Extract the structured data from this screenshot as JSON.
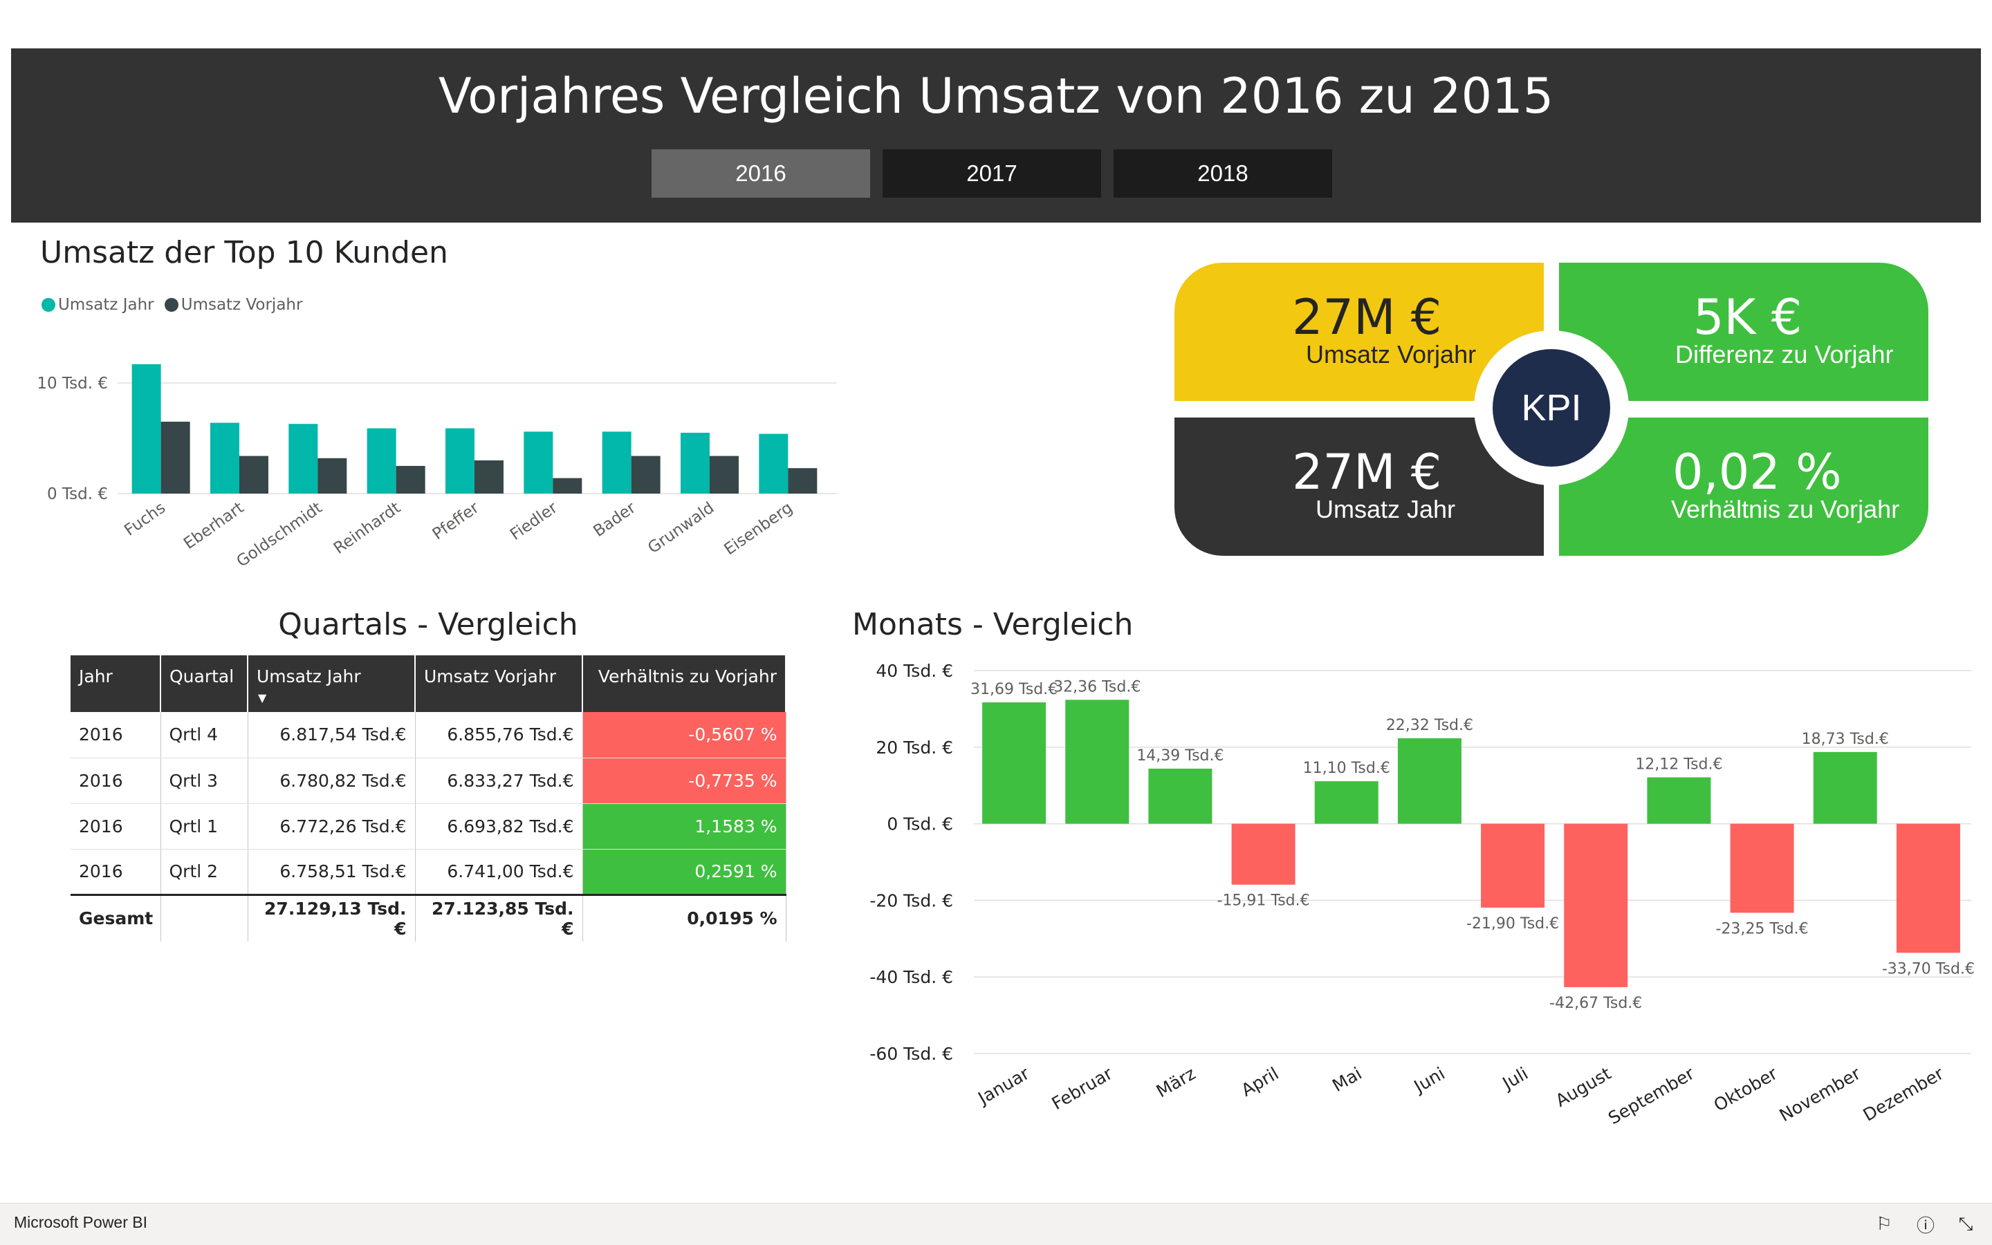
{
  "header": {
    "title": "Vorjahres Vergleich Umsatz von 2016 zu 2015",
    "years": [
      "2016",
      "2017",
      "2018"
    ],
    "active_year": "2016"
  },
  "top10": {
    "title": "Umsatz der Top 10 Kunden",
    "legend": [
      "Umsatz Jahr",
      "Umsatz Vorjahr"
    ]
  },
  "kpi": {
    "center_label": "KPI",
    "cards": [
      {
        "value": "27M €",
        "label": "Umsatz Vorjahr",
        "color": "#f2c811"
      },
      {
        "value": "5K €",
        "label": "Differenz zu Vorjahr",
        "color": "#3fbf3f"
      },
      {
        "value": "27M €",
        "label": "Umsatz Jahr",
        "color": "#333333"
      },
      {
        "value": "0,02 %",
        "label": "Verhältnis zu Vorjahr",
        "color": "#3fbf3f"
      }
    ]
  },
  "quartals": {
    "title": "Quartals - Vergleich",
    "columns": [
      "Jahr",
      "Quartal",
      "Umsatz Jahr",
      "Umsatz Vorjahr",
      "Verhältnis zu Vorjahr"
    ],
    "rows": [
      [
        "2016",
        "Qrtl 4",
        "6.817,54 Tsd.€",
        "6.855,76 Tsd.€",
        "-0,5607 %"
      ],
      [
        "2016",
        "Qrtl 3",
        "6.780,82 Tsd.€",
        "6.833,27 Tsd.€",
        "-0,7735 %"
      ],
      [
        "2016",
        "Qrtl 1",
        "6.772,26 Tsd.€",
        "6.693,82 Tsd.€",
        "1,1583 %"
      ],
      [
        "2016",
        "Qrtl 2",
        "6.758,51 Tsd.€",
        "6.741,00 Tsd.€",
        "0,2591 %"
      ]
    ],
    "total": [
      "Gesamt",
      "",
      "27.129,13 Tsd.€",
      "27.123,85 Tsd.€",
      "0,0195 %"
    ]
  },
  "monats": {
    "title": "Monats - Vergleich"
  },
  "footer": {
    "brand": "Microsoft Power BI"
  },
  "chart_data": [
    {
      "type": "bar",
      "title": "Umsatz der Top 10 Kunden",
      "categories": [
        "Fuchs",
        "Eberhart",
        "Goldschmidt",
        "Reinhardt",
        "Pfeffer",
        "Fiedler",
        "Bader",
        "Grunwald",
        "Eisenberg"
      ],
      "series": [
        {
          "name": "Umsatz Jahr",
          "color": "#01b8aa",
          "values": [
            11.7,
            6.4,
            6.3,
            5.9,
            5.9,
            5.6,
            5.6,
            5.5,
            5.4
          ]
        },
        {
          "name": "Umsatz Vorjahr",
          "color": "#374649",
          "values": [
            6.5,
            3.4,
            3.2,
            2.5,
            3.0,
            1.4,
            3.4,
            3.4,
            2.3
          ]
        }
      ],
      "yticks": [
        0,
        10
      ],
      "ytick_labels": [
        "0 Tsd. €",
        "10 Tsd. €"
      ],
      "ylim": [
        0,
        14
      ],
      "legend_position": "top-left"
    },
    {
      "type": "bar",
      "title": "Monats - Vergleich",
      "categories": [
        "Januar",
        "Februar",
        "März",
        "April",
        "Mai",
        "Juni",
        "Juli",
        "August",
        "September",
        "Oktober",
        "November",
        "Dezember"
      ],
      "values": [
        31.69,
        32.36,
        14.39,
        -15.91,
        11.1,
        22.32,
        -21.9,
        -42.67,
        12.12,
        -23.25,
        18.73,
        -33.7
      ],
      "data_labels": [
        "31,69 Tsd.€",
        "32,36 Tsd.€",
        "14,39 Tsd.€",
        "-15,91 Tsd.€",
        "11,10 Tsd.€",
        "22,32 Tsd.€",
        "-21,90 Tsd.€",
        "-42,67 Tsd.€",
        "12,12 Tsd.€",
        "-23,25 Tsd.€",
        "18,73 Tsd.€",
        "-33,70 Tsd.€"
      ],
      "positive_color": "#3fbf3f",
      "negative_color": "#fd625e",
      "yticks": [
        40,
        20,
        0,
        -20,
        -40,
        -60
      ],
      "ytick_labels": [
        "40 Tsd. €",
        "20 Tsd. €",
        "0 Tsd. €",
        "-20 Tsd. €",
        "-40 Tsd. €",
        "-60 Tsd. €"
      ],
      "ylim": [
        -60,
        40
      ]
    }
  ]
}
